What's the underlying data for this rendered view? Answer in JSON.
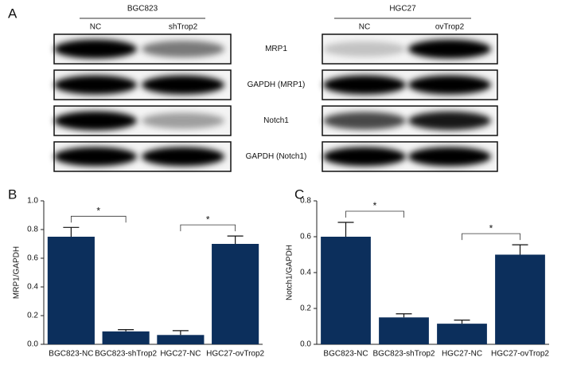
{
  "panel_labels": [
    "A",
    "B",
    "C"
  ],
  "blot": {
    "groups": [
      {
        "name": "BGC823",
        "lanes": [
          "NC",
          "shTrop2"
        ]
      },
      {
        "name": "HGC27",
        "lanes": [
          "NC",
          "ovTrop2"
        ]
      }
    ],
    "rows": [
      "MRP1",
      "GAPDH (MRP1)",
      "Notch1",
      "GAPDH (Notch1)"
    ]
  },
  "chart_data": [
    {
      "type": "bar",
      "ylabel": "MRP1/GAPDH",
      "categories": [
        "BGC823-NC",
        "BGC823-shTrop2",
        "HGC27-NC",
        "HGC27-ovTrop2"
      ],
      "values": [
        0.75,
        0.09,
        0.065,
        0.7
      ],
      "errors": [
        0.065,
        0.012,
        0.03,
        0.055
      ],
      "color": "#0c2f5c",
      "ylim": [
        0,
        1
      ],
      "grid": false,
      "yticks": [
        {
          "value": 0,
          "label": "0.0"
        },
        0.2,
        0.4,
        0.6,
        0.8,
        {
          "value": 1,
          "label": "1.0"
        }
      ],
      "annotations": [
        {
          "label": "*",
          "categories": [
            0,
            1
          ]
        },
        {
          "label": "*",
          "categories": [
            2,
            3
          ]
        }
      ]
    },
    {
      "type": "bar",
      "ylabel": "Notch1/GAPDH",
      "categories": [
        "BGC823-NC",
        "BGC823-shTrop2",
        "HGC27-NC",
        "HGC27-ovTrop2"
      ],
      "values": [
        0.6,
        0.15,
        0.115,
        0.5
      ],
      "errors": [
        0.08,
        0.02,
        0.02,
        0.055
      ],
      "color": "#0c2f5c",
      "ylim": [
        0,
        0.8
      ],
      "grid": false,
      "yticks": [
        {
          "value": 0,
          "label": "0.0"
        },
        0.2,
        0.4,
        0.6,
        0.8
      ],
      "annotations": [
        {
          "label": "*",
          "categories": [
            0,
            1
          ]
        },
        {
          "label": "*",
          "categories": [
            2,
            3
          ]
        }
      ]
    }
  ]
}
